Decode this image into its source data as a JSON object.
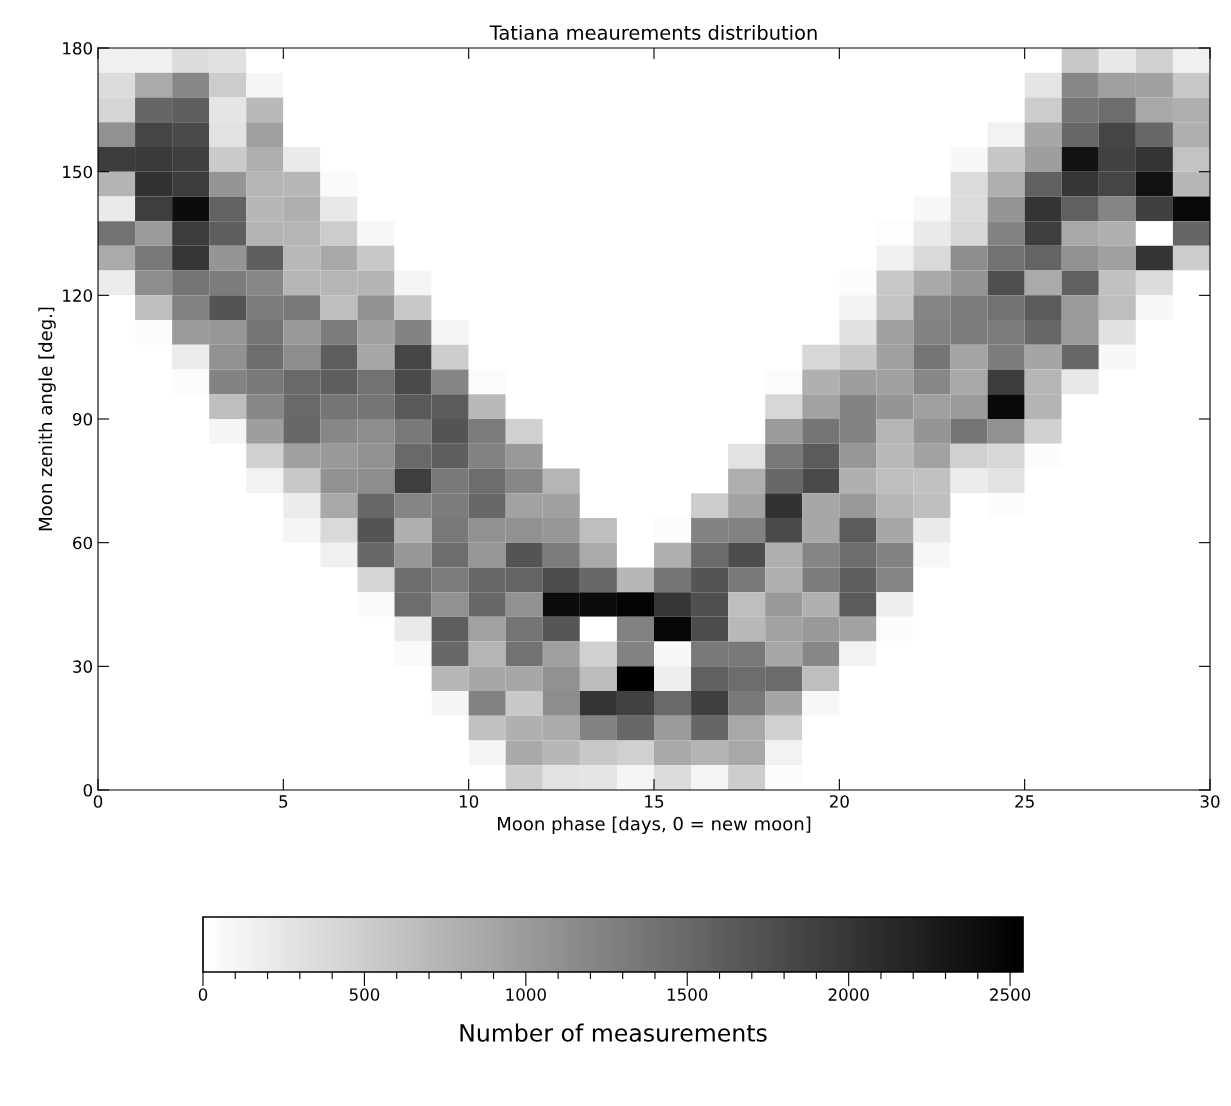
{
  "chart_data": {
    "type": "heatmap",
    "title": "Tatiana meaurements distribution",
    "xlabel": "Moon phase [days, 0 = new moon]",
    "ylabel": "Moon zenith angle [deg.]",
    "clabel": "Number of measurements",
    "xlim": [
      0,
      30
    ],
    "ylim": [
      0,
      180
    ],
    "xticks": [
      0,
      5,
      10,
      15,
      20,
      25,
      30
    ],
    "yticks": [
      0,
      30,
      60,
      90,
      120,
      150,
      180
    ],
    "clim": [
      0,
      2540
    ],
    "cticks": [
      0,
      {
        "value": 100,
        "label": null
      },
      {
        "value": 200,
        "label": null
      },
      {
        "value": 300,
        "label": null
      },
      {
        "value": 400,
        "label": null
      },
      500,
      {
        "value": 600,
        "label": null
      },
      {
        "value": 700,
        "label": null
      },
      {
        "value": 800,
        "label": null
      },
      {
        "value": 900,
        "label": null
      },
      1000,
      {
        "value": 1100,
        "label": null
      },
      {
        "value": 1200,
        "label": null
      },
      {
        "value": 1300,
        "label": null
      },
      {
        "value": 1400,
        "label": null
      },
      1500,
      {
        "value": 1600,
        "label": null
      },
      {
        "value": 1700,
        "label": null
      },
      {
        "value": 1800,
        "label": null
      },
      {
        "value": 1900,
        "label": null
      },
      2000,
      {
        "value": 2100,
        "label": null
      },
      {
        "value": 2200,
        "label": null
      },
      {
        "value": 2300,
        "label": null
      },
      {
        "value": 2400,
        "label": null
      },
      2500
    ],
    "grid": false,
    "cells": [
      [
        150,
        150,
        350,
        300,
        0,
        0,
        0,
        0,
        0,
        0,
        0,
        0,
        0,
        0,
        0,
        0,
        0,
        0,
        0,
        0,
        0,
        0,
        0,
        0,
        0,
        0,
        550,
        230,
        470,
        150
      ],
      [
        350,
        850,
        1200,
        510,
        100,
        0,
        0,
        0,
        0,
        0,
        0,
        0,
        0,
        0,
        0,
        0,
        0,
        0,
        0,
        0,
        0,
        0,
        0,
        0,
        0,
        270,
        1200,
        950,
        950,
        550
      ],
      [
        420,
        1520,
        1600,
        260,
        700,
        0,
        0,
        0,
        0,
        0,
        0,
        0,
        0,
        0,
        0,
        0,
        0,
        0,
        0,
        0,
        0,
        0,
        0,
        0,
        0,
        510,
        1370,
        1450,
        870,
        800
      ],
      [
        1100,
        1850,
        1800,
        290,
        950,
        0,
        0,
        0,
        0,
        0,
        0,
        0,
        0,
        0,
        0,
        0,
        0,
        0,
        0,
        0,
        0,
        0,
        0,
        0,
        130,
        880,
        1500,
        1850,
        1500,
        800
      ],
      [
        1940,
        1960,
        1900,
        520,
        800,
        210,
        0,
        0,
        0,
        0,
        0,
        0,
        0,
        0,
        0,
        0,
        0,
        0,
        0,
        0,
        0,
        0,
        0,
        70,
        570,
        970,
        2360,
        1880,
        2020,
        600
      ],
      [
        750,
        2040,
        1940,
        1060,
        740,
        720,
        50,
        0,
        0,
        0,
        0,
        0,
        0,
        0,
        0,
        0,
        0,
        0,
        0,
        0,
        0,
        0,
        0,
        350,
        800,
        1580,
        2000,
        1850,
        2360,
        720
      ],
      [
        210,
        1920,
        2420,
        1560,
        720,
        800,
        230,
        0,
        0,
        0,
        0,
        0,
        0,
        0,
        0,
        0,
        0,
        0,
        0,
        0,
        0,
        0,
        80,
        360,
        1060,
        2020,
        1580,
        1220,
        1900,
        2460
      ],
      [
        1400,
        1000,
        1940,
        1600,
        750,
        740,
        510,
        80,
        0,
        0,
        0,
        0,
        0,
        0,
        0,
        0,
        0,
        0,
        0,
        0,
        0,
        20,
        210,
        400,
        1240,
        1920,
        870,
        800,
        0,
        1520
      ],
      [
        850,
        1330,
        2000,
        1060,
        1600,
        700,
        870,
        550,
        0,
        0,
        0,
        0,
        0,
        0,
        0,
        0,
        0,
        0,
        0,
        0,
        0,
        150,
        380,
        1140,
        1400,
        1540,
        1100,
        950,
        2020,
        510
      ],
      [
        190,
        1140,
        1370,
        1300,
        1200,
        740,
        740,
        750,
        100,
        0,
        0,
        0,
        0,
        0,
        0,
        0,
        0,
        0,
        0,
        0,
        30,
        550,
        860,
        1060,
        1750,
        850,
        1580,
        620,
        350,
        0
      ],
      [
        0,
        650,
        1250,
        1700,
        1300,
        1330,
        650,
        1080,
        550,
        0,
        0,
        0,
        0,
        0,
        0,
        0,
        0,
        0,
        0,
        0,
        120,
        600,
        1220,
        1300,
        1400,
        1630,
        1000,
        650,
        70,
        0
      ],
      [
        0,
        30,
        1000,
        1040,
        1370,
        1020,
        1300,
        950,
        1240,
        100,
        0,
        0,
        0,
        0,
        0,
        0,
        0,
        0,
        0,
        0,
        300,
        950,
        1240,
        1300,
        1300,
        1500,
        1000,
        300,
        0,
        0
      ],
      [
        0,
        0,
        190,
        1100,
        1450,
        1140,
        1600,
        880,
        1850,
        510,
        0,
        0,
        0,
        0,
        0,
        0,
        0,
        0,
        0,
        400,
        550,
        950,
        1370,
        900,
        1300,
        900,
        1500,
        70,
        0,
        0
      ],
      [
        0,
        0,
        40,
        1240,
        1330,
        1490,
        1600,
        1400,
        1800,
        1220,
        40,
        0,
        0,
        0,
        0,
        0,
        0,
        0,
        40,
        790,
        970,
        950,
        1200,
        870,
        1940,
        740,
        230,
        0,
        0,
        0
      ],
      [
        0,
        0,
        0,
        650,
        1200,
        1490,
        1370,
        1370,
        1650,
        1630,
        700,
        0,
        0,
        0,
        0,
        0,
        0,
        0,
        400,
        930,
        1240,
        1060,
        950,
        1000,
        2450,
        750,
        0,
        0,
        0,
        0
      ],
      [
        0,
        0,
        0,
        100,
        970,
        1500,
        1200,
        1140,
        1330,
        1700,
        1300,
        470,
        0,
        0,
        0,
        0,
        0,
        0,
        1000,
        1370,
        1240,
        740,
        1060,
        1370,
        1100,
        470,
        0,
        0,
        0,
        0
      ],
      [
        0,
        0,
        0,
        0,
        470,
        950,
        1020,
        1100,
        1490,
        1600,
        1250,
        1020,
        0,
        0,
        0,
        0,
        0,
        290,
        1330,
        1630,
        1040,
        700,
        930,
        470,
        400,
        30,
        0,
        0,
        0,
        0
      ],
      [
        0,
        0,
        0,
        0,
        130,
        550,
        1100,
        1140,
        1920,
        1330,
        1450,
        1200,
        740,
        0,
        0,
        0,
        0,
        800,
        1500,
        1800,
        790,
        650,
        620,
        190,
        290,
        0,
        0,
        0,
        0,
        0
      ],
      [
        0,
        0,
        0,
        0,
        0,
        190,
        870,
        1500,
        1220,
        1300,
        1500,
        930,
        950,
        0,
        0,
        0,
        510,
        930,
        2040,
        880,
        1020,
        740,
        650,
        0,
        30,
        0,
        0,
        0,
        0,
        0
      ],
      [
        0,
        0,
        0,
        0,
        0,
        100,
        380,
        1700,
        790,
        1330,
        1100,
        1100,
        1040,
        650,
        0,
        30,
        1240,
        1250,
        1800,
        880,
        1630,
        880,
        210,
        0,
        0,
        0,
        0,
        0,
        0,
        0
      ],
      [
        0,
        0,
        0,
        0,
        0,
        0,
        150,
        1500,
        1040,
        1450,
        1040,
        1700,
        1300,
        850,
        0,
        800,
        1470,
        1780,
        800,
        1220,
        1450,
        1240,
        80,
        0,
        0,
        0,
        0,
        0,
        0,
        0
      ],
      [
        0,
        0,
        0,
        0,
        0,
        0,
        0,
        420,
        1450,
        1300,
        1500,
        1540,
        1770,
        1500,
        720,
        1370,
        1700,
        1330,
        800,
        1300,
        1600,
        1220,
        0,
        0,
        0,
        0,
        0,
        0,
        0,
        0
      ],
      [
        0,
        0,
        0,
        0,
        0,
        0,
        0,
        50,
        1450,
        1100,
        1500,
        1100,
        2420,
        2420,
        2500,
        2000,
        1750,
        650,
        1020,
        790,
        1630,
        160,
        0,
        0,
        0,
        0,
        0,
        0,
        0,
        0
      ],
      [
        0,
        0,
        0,
        0,
        0,
        0,
        0,
        0,
        210,
        1600,
        930,
        1370,
        1680,
        0,
        1250,
        2470,
        1770,
        700,
        930,
        1020,
        930,
        30,
        0,
        0,
        0,
        0,
        0,
        0,
        0,
        0
      ],
      [
        0,
        0,
        0,
        0,
        0,
        0,
        0,
        0,
        50,
        1500,
        740,
        1400,
        950,
        470,
        1250,
        70,
        1330,
        1330,
        880,
        1200,
        130,
        0,
        0,
        0,
        0,
        0,
        0,
        0,
        0,
        0
      ],
      [
        0,
        0,
        0,
        0,
        0,
        0,
        0,
        0,
        0,
        720,
        880,
        880,
        1100,
        670,
        2540,
        170,
        1580,
        1450,
        1470,
        650,
        0,
        0,
        0,
        0,
        0,
        0,
        0,
        0,
        0,
        0
      ],
      [
        0,
        0,
        0,
        0,
        0,
        0,
        0,
        0,
        0,
        100,
        1250,
        550,
        1140,
        2020,
        1880,
        1490,
        1910,
        1330,
        900,
        80,
        0,
        0,
        0,
        0,
        0,
        0,
        0,
        0,
        0,
        0
      ],
      [
        0,
        0,
        0,
        0,
        0,
        0,
        0,
        0,
        0,
        0,
        620,
        790,
        840,
        1250,
        1500,
        1000,
        1520,
        870,
        470,
        0,
        0,
        0,
        0,
        0,
        0,
        0,
        0,
        0,
        0,
        0
      ],
      [
        0,
        0,
        0,
        0,
        0,
        0,
        0,
        0,
        0,
        0,
        100,
        860,
        720,
        550,
        470,
        860,
        750,
        870,
        130,
        0,
        0,
        0,
        0,
        0,
        0,
        0,
        0,
        0,
        0,
        0
      ],
      [
        0,
        0,
        0,
        0,
        0,
        0,
        0,
        0,
        0,
        0,
        0,
        510,
        290,
        260,
        100,
        350,
        100,
        510,
        30,
        0,
        0,
        0,
        0,
        0,
        0,
        0,
        0,
        0,
        0,
        0
      ]
    ]
  }
}
